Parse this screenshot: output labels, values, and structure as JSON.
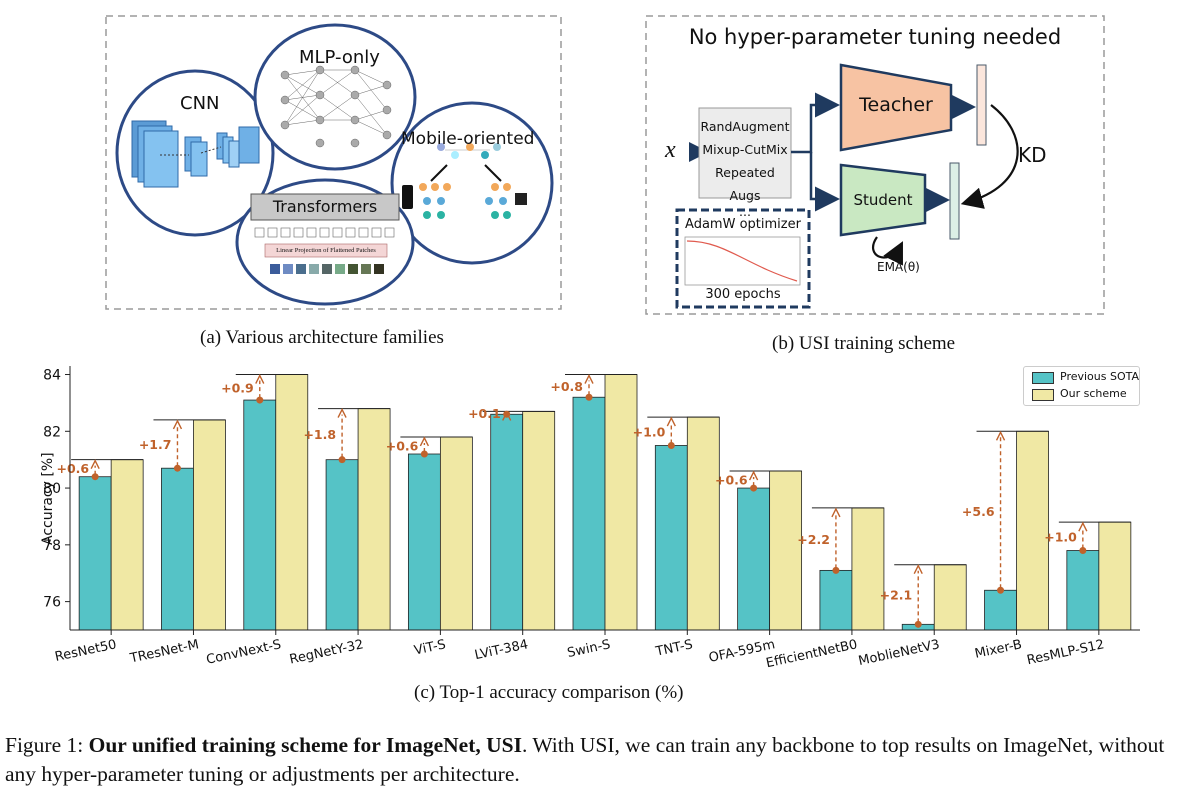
{
  "panel_a": {
    "labels": {
      "cnn": "CNN",
      "mlp": "MLP-only",
      "mobile": "Mobile-oriented",
      "transformers": "Transformers",
      "linear_proj": "Linear Projection of Flattened Patches"
    },
    "caption": "(a) Various architecture families"
  },
  "panel_b": {
    "title": "No hyper-parameter tuning needed",
    "input_symbol": "x",
    "aug_items": [
      "RandAugment",
      "Mixup-CutMix",
      "Repeated Augs",
      "..."
    ],
    "teacher": "Teacher",
    "student": "Student",
    "kd": "KD",
    "ema": "EMA(θ)",
    "optimizer": "AdamW optimizer",
    "epochs": "300 epochs",
    "caption": "(b) USI training scheme",
    "colors": {
      "teacher": "#f7c3a3",
      "student": "#c9e8c2",
      "border": "#1f3a5f"
    }
  },
  "chart_data": {
    "type": "bar",
    "ylabel": "Accuracy [%]",
    "ylim": [
      75,
      84.3
    ],
    "yticks": [
      76,
      78,
      80,
      82,
      84
    ],
    "categories": [
      "ResNet50",
      "TResNet-M",
      "ConvNext-S",
      "RegNetY-32",
      "ViT-S",
      "LViT-384",
      "Swin-S",
      "TNT-S",
      "OFA-595m",
      "EfficientNetB0",
      "MoblieNetV3",
      "Mixer-B",
      "ResMLP-S12"
    ],
    "category_labels": [
      "ResNet50",
      "TResNet-M",
      "ConvNext-S",
      "RegNetY-32",
      "ViT-S",
      "LViT-384",
      "Swin-S",
      "TNT-S",
      "OFA-595m",
      "EfficientNetB0",
      "MoblieNetV3",
      "Mixer-B",
      "ResMLP-S12"
    ],
    "series": [
      {
        "name": "Previous SOTA",
        "color": "#55c3c6",
        "values": [
          80.4,
          80.7,
          83.1,
          81.0,
          81.2,
          82.6,
          83.2,
          81.5,
          80.0,
          77.1,
          75.2,
          76.4,
          77.8
        ]
      },
      {
        "name": "Our scheme",
        "color": "#f0e8a4",
        "values": [
          81.0,
          82.4,
          84.0,
          82.8,
          81.8,
          82.7,
          84.0,
          82.5,
          80.6,
          79.3,
          77.3,
          82.0,
          78.8
        ]
      }
    ],
    "gain_labels": [
      "+0.6",
      "+1.7",
      "+0.9",
      "+1.8",
      "+0.6",
      "+0.1",
      "+0.8",
      "+1.0",
      "+0.6",
      "+2.2",
      "+2.1",
      "+5.6",
      "+1.0"
    ],
    "annotation_color": "#c0622b",
    "legend_position": "top-right",
    "caption": "(c) Top-1 accuracy comparison (%)"
  },
  "figure_caption": {
    "prefix": "Figure 1: ",
    "bold": "Our unified training scheme for ImageNet, USI",
    "rest": ". With USI, we can train any backbone to top results on ImageNet, without any hyper-parameter tuning or adjustments per architecture."
  }
}
